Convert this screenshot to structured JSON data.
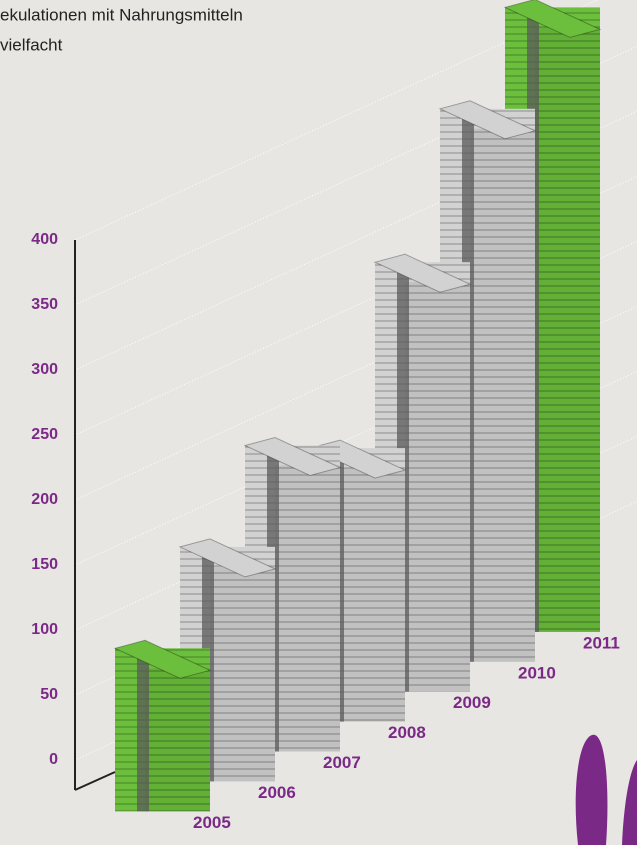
{
  "chart_data": {
    "type": "bar",
    "title_lines": [
      "ekulationen mit Nahrungsmitteln",
      "vielfacht"
    ],
    "categories": [
      "2005",
      "2006",
      "2007",
      "2008",
      "2009",
      "2010",
      "2011"
    ],
    "values": [
      70,
      125,
      180,
      155,
      275,
      370,
      425
    ],
    "colors": [
      "#6cbf3c",
      "#d2d2d2",
      "#d2d2d2",
      "#d2d2d2",
      "#d2d2d2",
      "#d2d2d2",
      "#6cbf3c"
    ],
    "ylim": [
      0,
      400
    ],
    "yticks": [
      0,
      50,
      100,
      150,
      200,
      250,
      300,
      350,
      400
    ],
    "grid": true
  }
}
